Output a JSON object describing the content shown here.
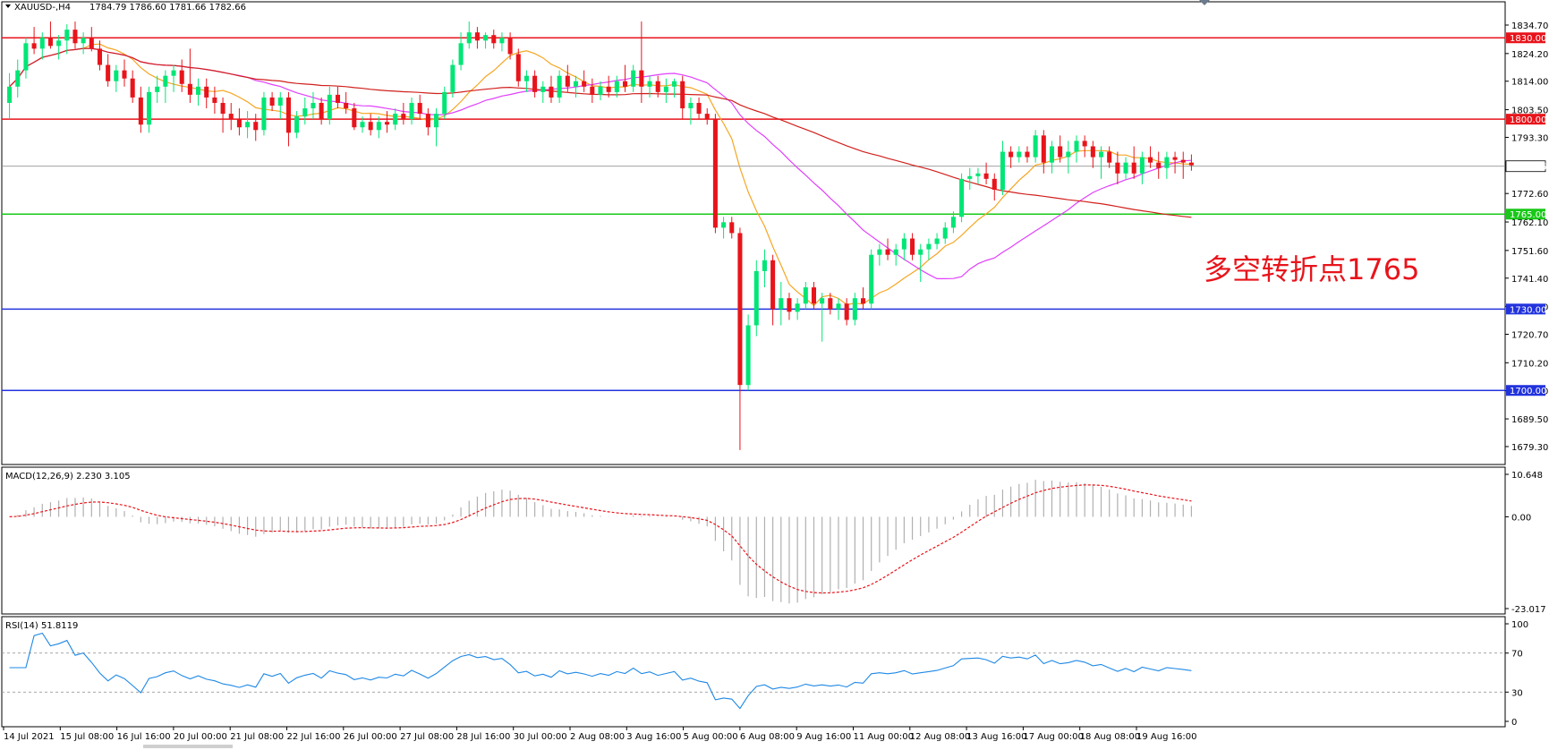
{
  "chart_data": {
    "type": "candlestick",
    "symbol": "XAUUSD-,H4",
    "ohlc_readout": "1784.79 1786.60 1781.66 1782.66",
    "price_range": [
      1675.0,
      1838.0
    ],
    "price_ticks": [
      "1834.70",
      "1824.20",
      "1814.00",
      "1803.50",
      "1793.30",
      "1772.60",
      "1762.10",
      "1751.60",
      "1741.40",
      "1731.00",
      "1720.70",
      "1710.20",
      "1699.90",
      "1689.50",
      "1679.30"
    ],
    "time_labels": [
      "14 Jul 2021",
      "15 Jul 08:00",
      "16 Jul 16:00",
      "20 Jul 00:00",
      "21 Jul 08:00",
      "22 Jul 16:00",
      "26 Jul 00:00",
      "27 Jul 08:00",
      "28 Jul 16:00",
      "30 Jul 00:00",
      "2 Aug 08:00",
      "3 Aug 16:00",
      "5 Aug 00:00",
      "6 Aug 08:00",
      "9 Aug 16:00",
      "11 Aug 00:00",
      "12 Aug 08:00",
      "13 Aug 16:00",
      "17 Aug 00:00",
      "18 Aug 08:00",
      "19 Aug 16:00"
    ],
    "level_lines": [
      {
        "price": 1830.0,
        "label": "1830.00",
        "color": "#e8141b"
      },
      {
        "price": 1800.0,
        "label": "1800.00",
        "color": "#e8141b"
      },
      {
        "price": 1782.66,
        "label": "1782.66",
        "color": "#808080"
      },
      {
        "price": 1765.0,
        "label": "1765.00",
        "color": "#19c819"
      },
      {
        "price": 1730.0,
        "label": "1730.00",
        "color": "#2233dd"
      },
      {
        "price": 1700.0,
        "label": "1700.00",
        "color": "#2233dd"
      }
    ],
    "annotation": "多空转折点1765",
    "colors": {
      "bull": "#00e676",
      "bear": "#e8141b",
      "ma_fast": "#f5a623",
      "ma_mid": "#e040fb",
      "ma_slow": "#d0201c",
      "rsi": "#1e88e5",
      "macd_signal": "#e8141b",
      "macd_hist": "#b0b0b0"
    },
    "candles": [
      {
        "o": 1806,
        "h": 1817,
        "l": 1800,
        "c": 1812
      },
      {
        "o": 1812,
        "h": 1822,
        "l": 1808,
        "c": 1818
      },
      {
        "o": 1818,
        "h": 1830,
        "l": 1815,
        "c": 1828
      },
      {
        "o": 1828,
        "h": 1834,
        "l": 1824,
        "c": 1826
      },
      {
        "o": 1826,
        "h": 1832,
        "l": 1822,
        "c": 1830
      },
      {
        "o": 1830,
        "h": 1836,
        "l": 1826,
        "c": 1827
      },
      {
        "o": 1827,
        "h": 1831,
        "l": 1822,
        "c": 1829
      },
      {
        "o": 1829,
        "h": 1835,
        "l": 1824,
        "c": 1833
      },
      {
        "o": 1833,
        "h": 1836,
        "l": 1826,
        "c": 1828
      },
      {
        "o": 1828,
        "h": 1832,
        "l": 1824,
        "c": 1830
      },
      {
        "o": 1830,
        "h": 1834,
        "l": 1825,
        "c": 1826
      },
      {
        "o": 1826,
        "h": 1829,
        "l": 1818,
        "c": 1820
      },
      {
        "o": 1820,
        "h": 1824,
        "l": 1812,
        "c": 1814
      },
      {
        "o": 1814,
        "h": 1820,
        "l": 1810,
        "c": 1818
      },
      {
        "o": 1818,
        "h": 1822,
        "l": 1812,
        "c": 1815
      },
      {
        "o": 1815,
        "h": 1818,
        "l": 1806,
        "c": 1808
      },
      {
        "o": 1808,
        "h": 1812,
        "l": 1795,
        "c": 1798
      },
      {
        "o": 1798,
        "h": 1812,
        "l": 1795,
        "c": 1810
      },
      {
        "o": 1810,
        "h": 1816,
        "l": 1806,
        "c": 1812
      },
      {
        "o": 1812,
        "h": 1818,
        "l": 1806,
        "c": 1816
      },
      {
        "o": 1816,
        "h": 1820,
        "l": 1810,
        "c": 1818
      },
      {
        "o": 1818,
        "h": 1822,
        "l": 1810,
        "c": 1813
      },
      {
        "o": 1813,
        "h": 1826,
        "l": 1806,
        "c": 1809
      },
      {
        "o": 1809,
        "h": 1815,
        "l": 1805,
        "c": 1812
      },
      {
        "o": 1812,
        "h": 1815,
        "l": 1804,
        "c": 1808
      },
      {
        "o": 1808,
        "h": 1812,
        "l": 1802,
        "c": 1806
      },
      {
        "o": 1806,
        "h": 1808,
        "l": 1795,
        "c": 1802
      },
      {
        "o": 1802,
        "h": 1806,
        "l": 1796,
        "c": 1800
      },
      {
        "o": 1800,
        "h": 1804,
        "l": 1794,
        "c": 1797
      },
      {
        "o": 1797,
        "h": 1803,
        "l": 1793,
        "c": 1799
      },
      {
        "o": 1799,
        "h": 1802,
        "l": 1792,
        "c": 1796
      },
      {
        "o": 1796,
        "h": 1810,
        "l": 1794,
        "c": 1808
      },
      {
        "o": 1808,
        "h": 1810,
        "l": 1803,
        "c": 1805
      },
      {
        "o": 1805,
        "h": 1810,
        "l": 1800,
        "c": 1808
      },
      {
        "o": 1808,
        "h": 1810,
        "l": 1790,
        "c": 1795
      },
      {
        "o": 1795,
        "h": 1803,
        "l": 1793,
        "c": 1801
      },
      {
        "o": 1801,
        "h": 1808,
        "l": 1798,
        "c": 1804
      },
      {
        "o": 1804,
        "h": 1810,
        "l": 1800,
        "c": 1806
      },
      {
        "o": 1806,
        "h": 1808,
        "l": 1798,
        "c": 1800
      },
      {
        "o": 1800,
        "h": 1812,
        "l": 1798,
        "c": 1809
      },
      {
        "o": 1809,
        "h": 1812,
        "l": 1804,
        "c": 1806
      },
      {
        "o": 1806,
        "h": 1810,
        "l": 1802,
        "c": 1804
      },
      {
        "o": 1804,
        "h": 1806,
        "l": 1796,
        "c": 1797
      },
      {
        "o": 1797,
        "h": 1801,
        "l": 1795,
        "c": 1799
      },
      {
        "o": 1799,
        "h": 1802,
        "l": 1794,
        "c": 1796
      },
      {
        "o": 1796,
        "h": 1801,
        "l": 1793,
        "c": 1799
      },
      {
        "o": 1799,
        "h": 1803,
        "l": 1795,
        "c": 1798
      },
      {
        "o": 1798,
        "h": 1804,
        "l": 1796,
        "c": 1802
      },
      {
        "o": 1802,
        "h": 1806,
        "l": 1798,
        "c": 1800
      },
      {
        "o": 1800,
        "h": 1808,
        "l": 1798,
        "c": 1806
      },
      {
        "o": 1806,
        "h": 1809,
        "l": 1800,
        "c": 1802
      },
      {
        "o": 1802,
        "h": 1804,
        "l": 1794,
        "c": 1797
      },
      {
        "o": 1797,
        "h": 1804,
        "l": 1790,
        "c": 1802
      },
      {
        "o": 1802,
        "h": 1812,
        "l": 1800,
        "c": 1810
      },
      {
        "o": 1810,
        "h": 1822,
        "l": 1808,
        "c": 1820
      },
      {
        "o": 1820,
        "h": 1832,
        "l": 1818,
        "c": 1828
      },
      {
        "o": 1828,
        "h": 1836,
        "l": 1826,
        "c": 1832
      },
      {
        "o": 1832,
        "h": 1834,
        "l": 1826,
        "c": 1829
      },
      {
        "o": 1829,
        "h": 1832,
        "l": 1826,
        "c": 1831
      },
      {
        "o": 1831,
        "h": 1833,
        "l": 1826,
        "c": 1828
      },
      {
        "o": 1828,
        "h": 1832,
        "l": 1825,
        "c": 1830
      },
      {
        "o": 1830,
        "h": 1832,
        "l": 1822,
        "c": 1824
      },
      {
        "o": 1824,
        "h": 1826,
        "l": 1812,
        "c": 1814
      },
      {
        "o": 1814,
        "h": 1818,
        "l": 1810,
        "c": 1816
      },
      {
        "o": 1816,
        "h": 1818,
        "l": 1808,
        "c": 1810
      },
      {
        "o": 1810,
        "h": 1814,
        "l": 1806,
        "c": 1812
      },
      {
        "o": 1812,
        "h": 1816,
        "l": 1806,
        "c": 1808
      },
      {
        "o": 1808,
        "h": 1818,
        "l": 1806,
        "c": 1816
      },
      {
        "o": 1816,
        "h": 1820,
        "l": 1810,
        "c": 1812
      },
      {
        "o": 1812,
        "h": 1816,
        "l": 1808,
        "c": 1814
      },
      {
        "o": 1814,
        "h": 1818,
        "l": 1810,
        "c": 1812
      },
      {
        "o": 1812,
        "h": 1815,
        "l": 1806,
        "c": 1809
      },
      {
        "o": 1809,
        "h": 1814,
        "l": 1807,
        "c": 1812
      },
      {
        "o": 1812,
        "h": 1816,
        "l": 1808,
        "c": 1810
      },
      {
        "o": 1810,
        "h": 1816,
        "l": 1808,
        "c": 1814
      },
      {
        "o": 1814,
        "h": 1820,
        "l": 1810,
        "c": 1812
      },
      {
        "o": 1812,
        "h": 1820,
        "l": 1810,
        "c": 1818
      },
      {
        "o": 1818,
        "h": 1836,
        "l": 1806,
        "c": 1812
      },
      {
        "o": 1812,
        "h": 1816,
        "l": 1808,
        "c": 1814
      },
      {
        "o": 1814,
        "h": 1816,
        "l": 1808,
        "c": 1810
      },
      {
        "o": 1810,
        "h": 1815,
        "l": 1806,
        "c": 1812
      },
      {
        "o": 1812,
        "h": 1815,
        "l": 1808,
        "c": 1814
      },
      {
        "o": 1814,
        "h": 1816,
        "l": 1800,
        "c": 1804
      },
      {
        "o": 1804,
        "h": 1808,
        "l": 1798,
        "c": 1806
      },
      {
        "o": 1806,
        "h": 1808,
        "l": 1800,
        "c": 1802
      },
      {
        "o": 1802,
        "h": 1804,
        "l": 1798,
        "c": 1800
      },
      {
        "o": 1800,
        "h": 1802,
        "l": 1758,
        "c": 1760
      },
      {
        "o": 1760,
        "h": 1764,
        "l": 1756,
        "c": 1762
      },
      {
        "o": 1762,
        "h": 1764,
        "l": 1756,
        "c": 1758
      },
      {
        "o": 1758,
        "h": 1760,
        "l": 1678,
        "c": 1702
      },
      {
        "o": 1702,
        "h": 1728,
        "l": 1700,
        "c": 1724
      },
      {
        "o": 1724,
        "h": 1748,
        "l": 1720,
        "c": 1744
      },
      {
        "o": 1744,
        "h": 1752,
        "l": 1738,
        "c": 1748
      },
      {
        "o": 1748,
        "h": 1750,
        "l": 1724,
        "c": 1730
      },
      {
        "o": 1730,
        "h": 1740,
        "l": 1724,
        "c": 1734
      },
      {
        "o": 1734,
        "h": 1736,
        "l": 1726,
        "c": 1729
      },
      {
        "o": 1729,
        "h": 1734,
        "l": 1726,
        "c": 1732
      },
      {
        "o": 1732,
        "h": 1740,
        "l": 1730,
        "c": 1738
      },
      {
        "o": 1738,
        "h": 1740,
        "l": 1730,
        "c": 1732
      },
      {
        "o": 1732,
        "h": 1736,
        "l": 1718,
        "c": 1734
      },
      {
        "o": 1734,
        "h": 1736,
        "l": 1728,
        "c": 1730
      },
      {
        "o": 1730,
        "h": 1734,
        "l": 1726,
        "c": 1732
      },
      {
        "o": 1732,
        "h": 1734,
        "l": 1724,
        "c": 1726
      },
      {
        "o": 1726,
        "h": 1736,
        "l": 1724,
        "c": 1734
      },
      {
        "o": 1734,
        "h": 1738,
        "l": 1730,
        "c": 1732
      },
      {
        "o": 1732,
        "h": 1752,
        "l": 1730,
        "c": 1750
      },
      {
        "o": 1750,
        "h": 1754,
        "l": 1746,
        "c": 1752
      },
      {
        "o": 1752,
        "h": 1756,
        "l": 1748,
        "c": 1750
      },
      {
        "o": 1750,
        "h": 1754,
        "l": 1746,
        "c": 1752
      },
      {
        "o": 1752,
        "h": 1758,
        "l": 1748,
        "c": 1756
      },
      {
        "o": 1756,
        "h": 1758,
        "l": 1748,
        "c": 1750
      },
      {
        "o": 1750,
        "h": 1754,
        "l": 1740,
        "c": 1752
      },
      {
        "o": 1752,
        "h": 1756,
        "l": 1748,
        "c": 1754
      },
      {
        "o": 1754,
        "h": 1758,
        "l": 1752,
        "c": 1756
      },
      {
        "o": 1756,
        "h": 1762,
        "l": 1754,
        "c": 1760
      },
      {
        "o": 1760,
        "h": 1766,
        "l": 1758,
        "c": 1764
      },
      {
        "o": 1764,
        "h": 1780,
        "l": 1762,
        "c": 1778
      },
      {
        "o": 1778,
        "h": 1782,
        "l": 1774,
        "c": 1779
      },
      {
        "o": 1779,
        "h": 1782,
        "l": 1776,
        "c": 1780
      },
      {
        "o": 1780,
        "h": 1784,
        "l": 1776,
        "c": 1778
      },
      {
        "o": 1778,
        "h": 1780,
        "l": 1770,
        "c": 1774
      },
      {
        "o": 1774,
        "h": 1792,
        "l": 1772,
        "c": 1788
      },
      {
        "o": 1788,
        "h": 1790,
        "l": 1782,
        "c": 1786
      },
      {
        "o": 1786,
        "h": 1790,
        "l": 1784,
        "c": 1788
      },
      {
        "o": 1788,
        "h": 1790,
        "l": 1784,
        "c": 1786
      },
      {
        "o": 1786,
        "h": 1796,
        "l": 1784,
        "c": 1794
      },
      {
        "o": 1794,
        "h": 1796,
        "l": 1780,
        "c": 1784
      },
      {
        "o": 1784,
        "h": 1792,
        "l": 1780,
        "c": 1790
      },
      {
        "o": 1790,
        "h": 1794,
        "l": 1784,
        "c": 1786
      },
      {
        "o": 1786,
        "h": 1792,
        "l": 1780,
        "c": 1788
      },
      {
        "o": 1788,
        "h": 1794,
        "l": 1784,
        "c": 1792
      },
      {
        "o": 1792,
        "h": 1794,
        "l": 1786,
        "c": 1790
      },
      {
        "o": 1790,
        "h": 1792,
        "l": 1782,
        "c": 1786
      },
      {
        "o": 1786,
        "h": 1790,
        "l": 1778,
        "c": 1788
      },
      {
        "o": 1788,
        "h": 1790,
        "l": 1782,
        "c": 1784
      },
      {
        "o": 1784,
        "h": 1788,
        "l": 1776,
        "c": 1780
      },
      {
        "o": 1780,
        "h": 1786,
        "l": 1778,
        "c": 1784
      },
      {
        "o": 1784,
        "h": 1790,
        "l": 1778,
        "c": 1780
      },
      {
        "o": 1780,
        "h": 1788,
        "l": 1776,
        "c": 1786
      },
      {
        "o": 1786,
        "h": 1790,
        "l": 1782,
        "c": 1784
      },
      {
        "o": 1784,
        "h": 1788,
        "l": 1778,
        "c": 1782
      },
      {
        "o": 1782,
        "h": 1788,
        "l": 1778,
        "c": 1786
      },
      {
        "o": 1786,
        "h": 1788,
        "l": 1780,
        "c": 1785
      },
      {
        "o": 1785,
        "h": 1788,
        "l": 1778,
        "c": 1784
      },
      {
        "o": 1784,
        "h": 1787,
        "l": 1781,
        "c": 1783
      }
    ],
    "macd": {
      "label": "MACD(12,26,9) 2.230 3.105",
      "range": [
        -23.017,
        10.648
      ],
      "ticks": [
        "10.648",
        "0.00",
        "-23.017"
      ]
    },
    "rsi": {
      "label": "RSI(14) 51.8119",
      "range": [
        0,
        100
      ],
      "levels": [
        70,
        30
      ],
      "ticks": [
        "100",
        "70",
        "30",
        "0"
      ]
    }
  }
}
